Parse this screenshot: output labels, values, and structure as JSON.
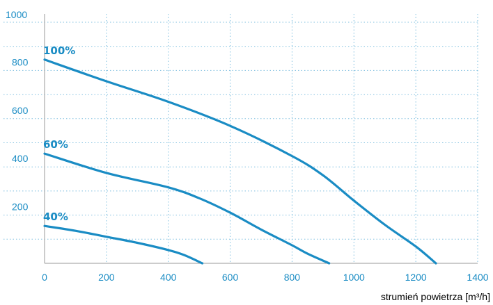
{
  "chart_data": {
    "type": "line",
    "xlabel": "strumień powietrza [m³/h]",
    "ylabel": "",
    "xlim": [
      0,
      1400
    ],
    "ylim": [
      0,
      1000
    ],
    "x_ticks": [
      "0",
      "200",
      "400",
      "600",
      "800",
      "1000",
      "1200",
      "1400"
    ],
    "y_ticks": [
      "200",
      "400",
      "600",
      "800",
      "1000"
    ],
    "grid": true,
    "series": [
      {
        "name": "100%",
        "points": [
          [
            0,
            845
          ],
          [
            200,
            755
          ],
          [
            400,
            670
          ],
          [
            600,
            570
          ],
          [
            800,
            445
          ],
          [
            900,
            365
          ],
          [
            1000,
            260
          ],
          [
            1100,
            160
          ],
          [
            1200,
            70
          ],
          [
            1265,
            0
          ]
        ]
      },
      {
        "name": "60%",
        "points": [
          [
            0,
            455
          ],
          [
            200,
            375
          ],
          [
            400,
            315
          ],
          [
            500,
            270
          ],
          [
            600,
            210
          ],
          [
            700,
            140
          ],
          [
            800,
            75
          ],
          [
            850,
            40
          ],
          [
            920,
            0
          ]
        ]
      },
      {
        "name": "40%",
        "points": [
          [
            0,
            155
          ],
          [
            100,
            135
          ],
          [
            200,
            110
          ],
          [
            300,
            85
          ],
          [
            400,
            55
          ],
          [
            450,
            35
          ],
          [
            510,
            0
          ]
        ]
      }
    ],
    "colors": {
      "line": "#1a8cc4",
      "label": "#1a8cc4",
      "tick": "#1a8cc4",
      "grid": "#7fbfdf",
      "axis": "#9a9a9a"
    }
  }
}
